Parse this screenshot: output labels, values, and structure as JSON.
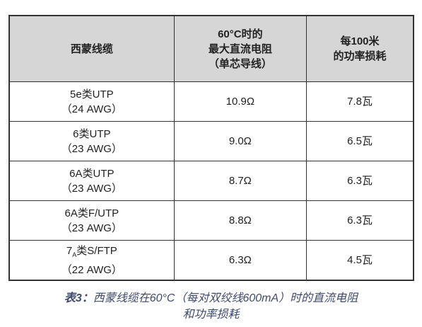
{
  "table": {
    "header": [
      [
        "西蒙线缆"
      ],
      [
        "60°C时的",
        "最大直流电阻",
        "（单芯导线）"
      ],
      [
        "每100米",
        "的功率损耗"
      ]
    ],
    "rows": [
      [
        [
          "5e类UTP",
          "（24 AWG）"
        ],
        "10.9Ω",
        "7.8瓦"
      ],
      [
        [
          "6类UTP",
          "（23 AWG）"
        ],
        "9.0Ω",
        "6.5瓦"
      ],
      [
        [
          "6A类UTP",
          "（23 AWG）"
        ],
        "8.7Ω",
        "6.3瓦"
      ],
      [
        [
          "6A类F/UTP",
          "（23 AWG）"
        ],
        "8.8Ω",
        "6.3瓦"
      ],
      [
        [
          "7",
          "A",
          "类S/FTP",
          "（22 AWG）"
        ],
        "6.3Ω",
        "4.5瓦"
      ]
    ]
  },
  "caption": {
    "label": "表3：",
    "lines": [
      "西蒙线缆在60°C（每对双绞线600mA）时的直流电阻",
      "和功率损耗"
    ]
  }
}
